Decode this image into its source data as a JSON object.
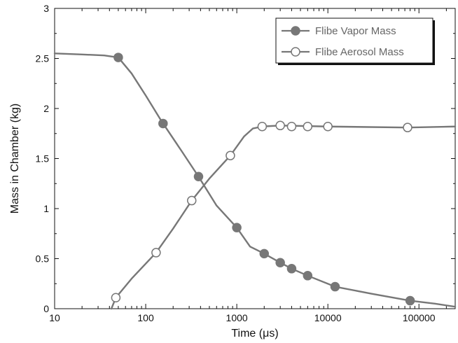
{
  "chart_data": {
    "type": "line",
    "xscale": "log",
    "xlim": [
      10,
      250000
    ],
    "ylim": [
      0,
      3
    ],
    "xlabel": "Time (μs)",
    "ylabel": "Mass in Chamber (kg)",
    "grid": false,
    "legend_position": "top-right",
    "x_ticks": [
      {
        "value": 10,
        "label": "10"
      },
      {
        "value": 100,
        "label": "100"
      },
      {
        "value": 1000,
        "label": "1000"
      },
      {
        "value": 10000,
        "label": "10000"
      },
      {
        "value": 100000,
        "label": "100000"
      }
    ],
    "y_ticks": [
      {
        "value": 0,
        "label": "0"
      },
      {
        "value": 0.5,
        "label": "0.5"
      },
      {
        "value": 1,
        "label": "1"
      },
      {
        "value": 1.5,
        "label": "1.5"
      },
      {
        "value": 2,
        "label": "2"
      },
      {
        "value": 2.5,
        "label": "2.5"
      },
      {
        "value": 3,
        "label": "3"
      }
    ],
    "series": [
      {
        "name": "Flibe Vapor Mass",
        "marker": "filled-circle",
        "color": "#777777",
        "curve": [
          {
            "x": 10,
            "y": 2.55
          },
          {
            "x": 20,
            "y": 2.54
          },
          {
            "x": 35,
            "y": 2.53
          },
          {
            "x": 50,
            "y": 2.51
          },
          {
            "x": 70,
            "y": 2.35
          },
          {
            "x": 100,
            "y": 2.13
          },
          {
            "x": 150,
            "y": 1.87
          },
          {
            "x": 250,
            "y": 1.57
          },
          {
            "x": 380,
            "y": 1.32
          },
          {
            "x": 600,
            "y": 1.03
          },
          {
            "x": 1000,
            "y": 0.81
          },
          {
            "x": 1400,
            "y": 0.62
          },
          {
            "x": 2000,
            "y": 0.55
          },
          {
            "x": 3000,
            "y": 0.46
          },
          {
            "x": 4000,
            "y": 0.4
          },
          {
            "x": 6000,
            "y": 0.33
          },
          {
            "x": 12000,
            "y": 0.22
          },
          {
            "x": 30000,
            "y": 0.15
          },
          {
            "x": 80000,
            "y": 0.08
          },
          {
            "x": 150000,
            "y": 0.05
          },
          {
            "x": 250000,
            "y": 0.02
          }
        ],
        "markers": [
          {
            "x": 50,
            "y": 2.51
          },
          {
            "x": 155,
            "y": 1.85
          },
          {
            "x": 380,
            "y": 1.32
          },
          {
            "x": 1000,
            "y": 0.81
          },
          {
            "x": 2000,
            "y": 0.55
          },
          {
            "x": 3000,
            "y": 0.46
          },
          {
            "x": 4000,
            "y": 0.4
          },
          {
            "x": 6000,
            "y": 0.33
          },
          {
            "x": 12000,
            "y": 0.22
          },
          {
            "x": 80000,
            "y": 0.08
          }
        ]
      },
      {
        "name": "Flibe Aerosol Mass",
        "marker": "open-circle",
        "color": "#777777",
        "curve": [
          {
            "x": 42,
            "y": 0
          },
          {
            "x": 47,
            "y": 0.11
          },
          {
            "x": 70,
            "y": 0.3
          },
          {
            "x": 130,
            "y": 0.56
          },
          {
            "x": 200,
            "y": 0.8
          },
          {
            "x": 320,
            "y": 1.08
          },
          {
            "x": 500,
            "y": 1.3
          },
          {
            "x": 850,
            "y": 1.53
          },
          {
            "x": 1200,
            "y": 1.72
          },
          {
            "x": 1500,
            "y": 1.8
          },
          {
            "x": 1900,
            "y": 1.82
          },
          {
            "x": 3000,
            "y": 1.83
          },
          {
            "x": 10000,
            "y": 1.82
          },
          {
            "x": 75000,
            "y": 1.81
          },
          {
            "x": 250000,
            "y": 1.82
          }
        ],
        "markers": [
          {
            "x": 47,
            "y": 0.11
          },
          {
            "x": 130,
            "y": 0.56
          },
          {
            "x": 320,
            "y": 1.08
          },
          {
            "x": 850,
            "y": 1.53
          },
          {
            "x": 1900,
            "y": 1.82
          },
          {
            "x": 3000,
            "y": 1.83
          },
          {
            "x": 4000,
            "y": 1.82
          },
          {
            "x": 6000,
            "y": 1.82
          },
          {
            "x": 10000,
            "y": 1.82
          },
          {
            "x": 75000,
            "y": 1.81
          }
        ]
      }
    ]
  }
}
